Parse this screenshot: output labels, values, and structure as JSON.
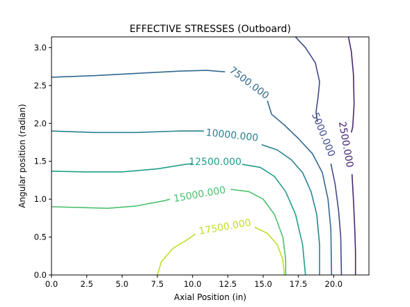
{
  "chart_data": {
    "type": "contour",
    "title": "EFFECTIVE STRESSES (Outboard)",
    "xlabel": "Axial Position (in)",
    "ylabel": "Angular position (radian)",
    "xlim": [
      0,
      22.5
    ],
    "ylim": [
      0,
      3.14159
    ],
    "xticks": [
      0,
      2.5,
      5,
      7.5,
      10,
      12.5,
      15,
      17.5,
      20
    ],
    "xtick_labels": [
      "0.0",
      "2.5",
      "5.0",
      "7.5",
      "10.0",
      "12.5",
      "15.0",
      "17.5",
      "20.0"
    ],
    "yticks": [
      0,
      0.5,
      1,
      1.5,
      2,
      2.5,
      3
    ],
    "ytick_labels": [
      "0.0",
      "0.5",
      "1.0",
      "1.5",
      "2.0",
      "2.5",
      "3.0"
    ],
    "grid": false,
    "levels": [
      {
        "value": 2500,
        "label": "2500.000",
        "color": "#482475",
        "label_at": {
          "x": 20.85,
          "y": 1.72
        },
        "label_angle": 80,
        "segments": [
          [
            [
              21.05,
              3.14
            ],
            [
              21.25,
              2.95
            ],
            [
              21.4,
              2.65
            ],
            [
              21.45,
              2.25
            ],
            [
              21.35,
              1.95
            ],
            [
              21.25,
              1.88
            ]
          ],
          [
            [
              21.3,
              1.33
            ],
            [
              21.4,
              1.0
            ],
            [
              21.5,
              0.6
            ],
            [
              21.55,
              0.3
            ],
            [
              21.55,
              0.0
            ]
          ]
        ]
      },
      {
        "value": 5000,
        "label": "5000.000",
        "color": "#3e4989",
        "label_at": {
          "x": 19.25,
          "y": 1.85
        },
        "label_angle": 68,
        "segments": [
          [
            [
              17.3,
              3.14
            ],
            [
              18.0,
              3.0
            ],
            [
              18.7,
              2.8
            ],
            [
              19.0,
              2.55
            ],
            [
              18.9,
              2.35
            ],
            [
              18.75,
              2.15
            ],
            [
              18.85,
              2.02
            ]
          ],
          [
            [
              19.8,
              1.47
            ],
            [
              20.1,
              1.2
            ],
            [
              20.35,
              0.85
            ],
            [
              20.5,
              0.5
            ],
            [
              20.55,
              0.0
            ]
          ]
        ]
      },
      {
        "value": 7500,
        "label": "7500.000",
        "color": "#31688e",
        "label_at": {
          "x": 14.0,
          "y": 2.53
        },
        "label_angle": 37,
        "segments": [
          [
            [
              0.0,
              2.61
            ],
            [
              3.0,
              2.63
            ],
            [
              6.0,
              2.66
            ],
            [
              9.0,
              2.69
            ],
            [
              11.0,
              2.7
            ],
            [
              12.3,
              2.68
            ]
          ],
          [
            [
              15.3,
              2.3
            ],
            [
              15.6,
              2.12
            ],
            [
              16.5,
              1.98
            ],
            [
              17.5,
              1.8
            ],
            [
              18.5,
              1.6
            ],
            [
              19.2,
              1.35
            ],
            [
              19.6,
              1.0
            ],
            [
              19.8,
              0.6
            ],
            [
              19.85,
              0.0
            ]
          ]
        ]
      },
      {
        "value": 10000,
        "label": "10000.000",
        "color": "#26828e",
        "label_at": {
          "x": 12.8,
          "y": 1.84
        },
        "label_angle": 6,
        "segments": [
          [
            [
              0.0,
              1.9
            ],
            [
              3.0,
              1.88
            ],
            [
              6.0,
              1.88
            ],
            [
              9.0,
              1.9
            ],
            [
              10.8,
              1.9
            ]
          ],
          [
            [
              14.9,
              1.72
            ],
            [
              16.0,
              1.65
            ],
            [
              17.0,
              1.52
            ],
            [
              17.8,
              1.35
            ],
            [
              18.4,
              1.1
            ],
            [
              18.8,
              0.8
            ],
            [
              19.0,
              0.4
            ],
            [
              19.0,
              0.0
            ]
          ]
        ]
      },
      {
        "value": 12500,
        "label": "12500.000",
        "color": "#1f9e89",
        "label_at": {
          "x": 11.6,
          "y": 1.49
        },
        "label_angle": 0,
        "segments": [
          [
            [
              0.0,
              1.37
            ],
            [
              2.5,
              1.36
            ],
            [
              5.0,
              1.36
            ],
            [
              7.5,
              1.4
            ],
            [
              9.5,
              1.46
            ],
            [
              10.0,
              1.47
            ]
          ],
          [
            [
              13.5,
              1.46
            ],
            [
              14.8,
              1.42
            ],
            [
              15.8,
              1.3
            ],
            [
              16.6,
              1.1
            ],
            [
              17.3,
              0.8
            ],
            [
              17.8,
              0.4
            ],
            [
              18.0,
              0.0
            ]
          ]
        ]
      },
      {
        "value": 15000,
        "label": "15000.000",
        "color": "#4ac16d",
        "label_at": {
          "x": 10.5,
          "y": 1.06
        },
        "label_angle": -10,
        "segments": [
          [
            [
              0.0,
              0.9
            ],
            [
              2.0,
              0.89
            ],
            [
              4.0,
              0.88
            ],
            [
              6.0,
              0.91
            ],
            [
              8.0,
              0.98
            ],
            [
              8.4,
              1.0
            ]
          ],
          [
            [
              12.7,
              1.13
            ],
            [
              14.0,
              1.1
            ],
            [
              15.0,
              1.0
            ],
            [
              15.8,
              0.8
            ],
            [
              16.4,
              0.5
            ],
            [
              16.6,
              0.2
            ],
            [
              16.6,
              0.0
            ]
          ]
        ]
      },
      {
        "value": 17500,
        "label": "17500.000",
        "color": "#bddf26",
        "label_at": {
          "x": 12.3,
          "y": 0.63
        },
        "label_angle": -10,
        "segments": [
          [
            [
              7.5,
              0.0
            ],
            [
              7.8,
              0.18
            ],
            [
              8.6,
              0.35
            ],
            [
              9.5,
              0.45
            ],
            [
              10.2,
              0.54
            ]
          ],
          [
            [
              14.4,
              0.63
            ],
            [
              15.3,
              0.55
            ],
            [
              16.0,
              0.4
            ],
            [
              16.4,
              0.2
            ],
            [
              16.5,
              0.0
            ]
          ]
        ]
      }
    ]
  }
}
